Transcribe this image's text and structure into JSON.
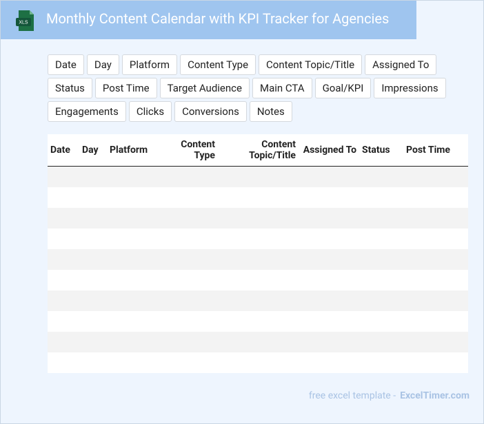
{
  "header": {
    "icon_label": "XLS",
    "title": "Monthly Content Calendar with KPI Tracker for Agencies"
  },
  "tags": [
    "Date",
    "Day",
    "Platform",
    "Content Type",
    "Content Topic/Title",
    "Assigned To",
    "Status",
    "Post Time",
    "Target Audience",
    "Main CTA",
    "Goal/KPI",
    "Impressions",
    "Engagements",
    "Clicks",
    "Conversions",
    "Notes"
  ],
  "table": {
    "columns": [
      "Date",
      "Day",
      "Platform",
      "Content Type",
      "Content Topic/Title",
      "Assigned To",
      "Status",
      "Post Time"
    ]
  },
  "footer": {
    "text": "free excel template -",
    "brand": "ExcelTimer.com"
  }
}
